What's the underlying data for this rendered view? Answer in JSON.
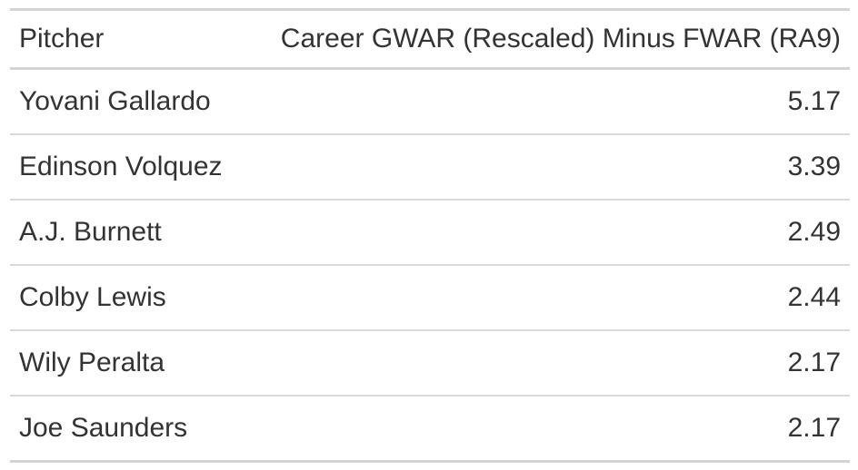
{
  "chart_data": {
    "type": "table",
    "columns": [
      "Pitcher",
      "Career GWAR (Rescaled) Minus FWAR (RA9)"
    ],
    "rows": [
      [
        "Yovani Gallardo",
        "5.17"
      ],
      [
        "Edinson Volquez",
        "3.39"
      ],
      [
        "A.J. Burnett",
        "2.49"
      ],
      [
        "Colby Lewis",
        "2.44"
      ],
      [
        "Wily Peralta",
        "2.17"
      ],
      [
        "Joe Saunders",
        "2.17"
      ]
    ]
  }
}
